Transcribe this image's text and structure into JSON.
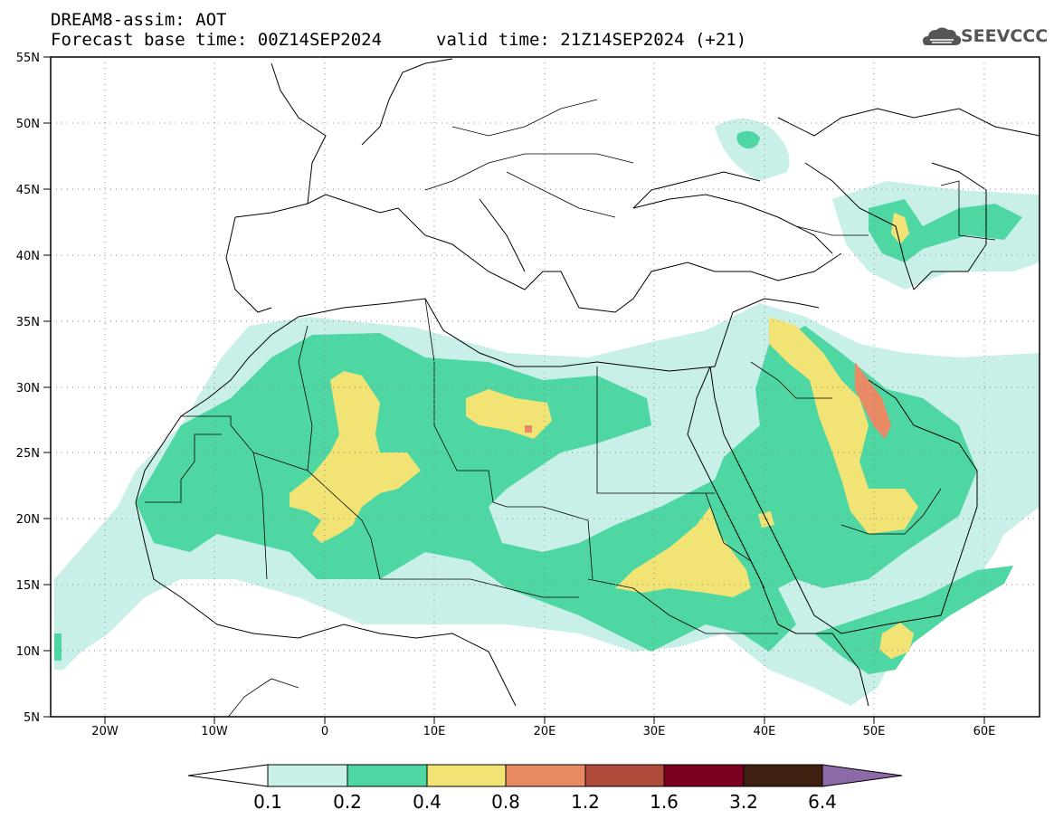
{
  "header": {
    "title": "DREAM8-assim: AOT",
    "base_time": "Forecast base time: 00Z14SEP2024",
    "valid_time": "valid time: 21Z14SEP2024 (+21)",
    "logo_text": "SEEVCCC",
    "logo_icon": "cloud-icon"
  },
  "map": {
    "lon_range": [
      -25,
      65
    ],
    "lat_range": [
      5,
      55
    ],
    "lat_labels": [
      "55N",
      "50N",
      "45N",
      "40N",
      "35N",
      "30N",
      "25N",
      "20N",
      "15N",
      "10N",
      "5N"
    ],
    "lon_labels": [
      "20W",
      "10W",
      "0",
      "10E",
      "20E",
      "30E",
      "40E",
      "50E",
      "60E"
    ],
    "grid": "dotted"
  },
  "colorbar": {
    "levels": [
      "0.1",
      "0.2",
      "0.4",
      "0.8",
      "1.2",
      "1.6",
      "3.2",
      "6.4"
    ],
    "colors": [
      "#ffffff",
      "#c8efe8",
      "#4fd7a3",
      "#f2e474",
      "#e88a64",
      "#b04b3b",
      "#7a0020",
      "#402010",
      "#8c6aa8"
    ]
  }
}
